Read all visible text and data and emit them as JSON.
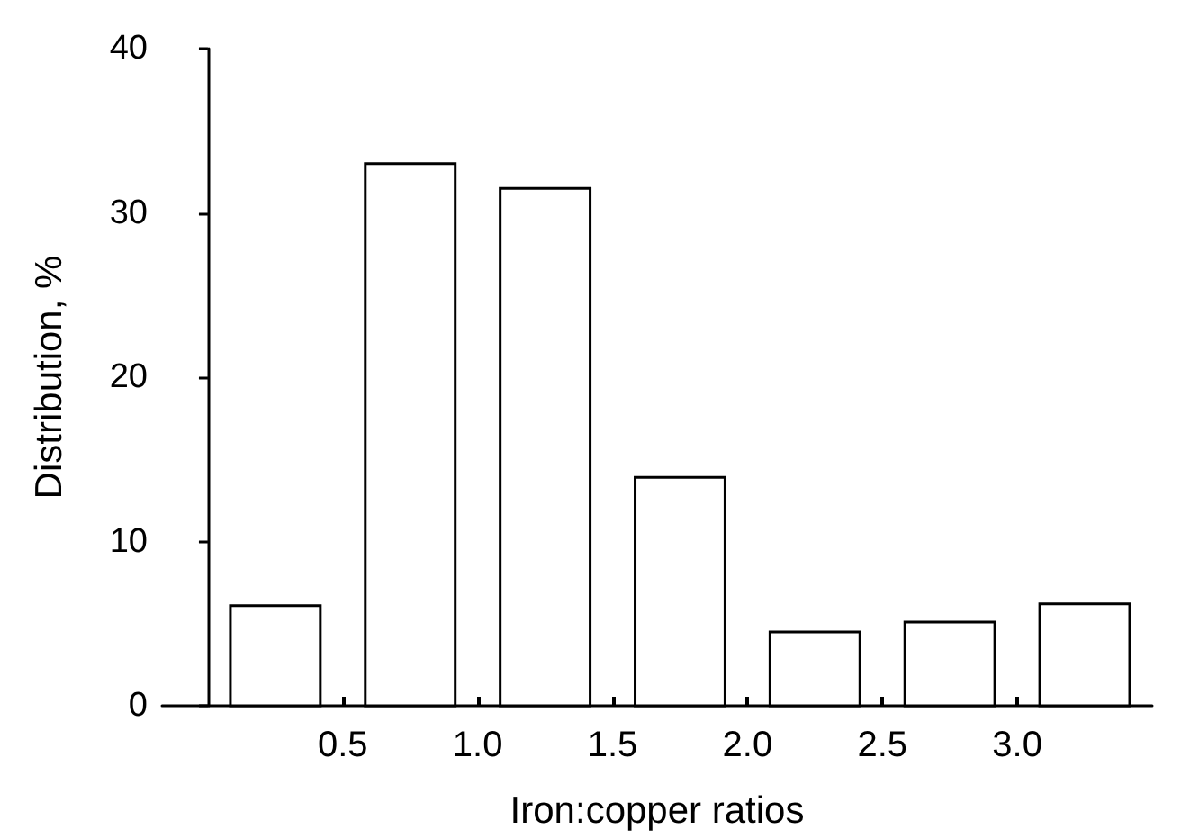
{
  "chart_data": {
    "type": "histogram",
    "xlabel": "Iron:copper ratios",
    "ylabel": "Distribution, %",
    "bins": [
      0,
      0.5,
      1,
      1.5,
      2,
      2.5,
      3,
      3.5
    ],
    "values": [
      6.1,
      33,
      31.5,
      13.9,
      4.5,
      5.1,
      6.2
    ],
    "color": "#ffffff",
    "xlim": [
      -0.17,
      3.5
    ],
    "xticks": [
      0.5,
      {
        "value": 1,
        "label": "1.0"
      },
      1.5,
      {
        "value": 2,
        "label": "2.0"
      },
      2.5,
      {
        "value": 3,
        "label": "3.0"
      }
    ],
    "ylim": [
      0,
      40
    ],
    "yticks": [
      0,
      10,
      20,
      30,
      40
    ],
    "grid": false
  }
}
